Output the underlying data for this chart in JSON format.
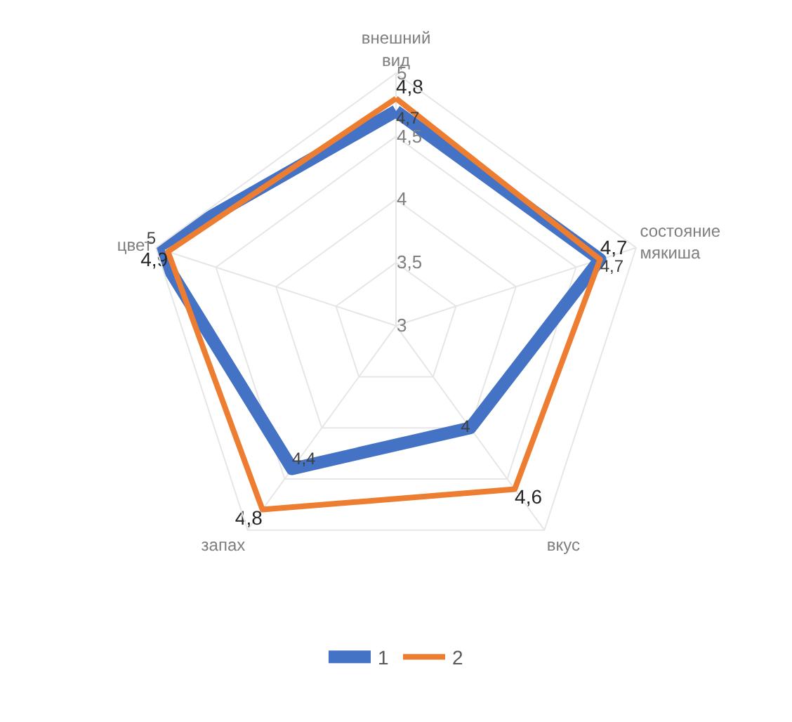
{
  "chart_data": {
    "type": "radar",
    "categories": [
      "внешний вид",
      "состояние мякиша",
      "вкус",
      "запах",
      "цвет"
    ],
    "ylim": [
      3,
      5
    ],
    "yticks": [
      3,
      {
        "value": 3.5,
        "label": "3,5"
      },
      4,
      {
        "value": 4.5,
        "label": "4,5"
      },
      5
    ],
    "grid": true,
    "legend": "bottom",
    "marker": "none",
    "series": [
      {
        "name": "1",
        "color": "#4472c4",
        "values": [
          4.7,
          4.7,
          4,
          4.4,
          5
        ],
        "value_labels": [
          "4,7",
          "4,7",
          "4",
          "4,4",
          "5"
        ]
      },
      {
        "name": "2",
        "color": "#ed7d31",
        "values": [
          4.8,
          4.7,
          4.6,
          4.8,
          4.9
        ],
        "value_labels": [
          "4,8",
          "4,7",
          "4,6",
          "4,8",
          "4,9"
        ]
      }
    ]
  }
}
